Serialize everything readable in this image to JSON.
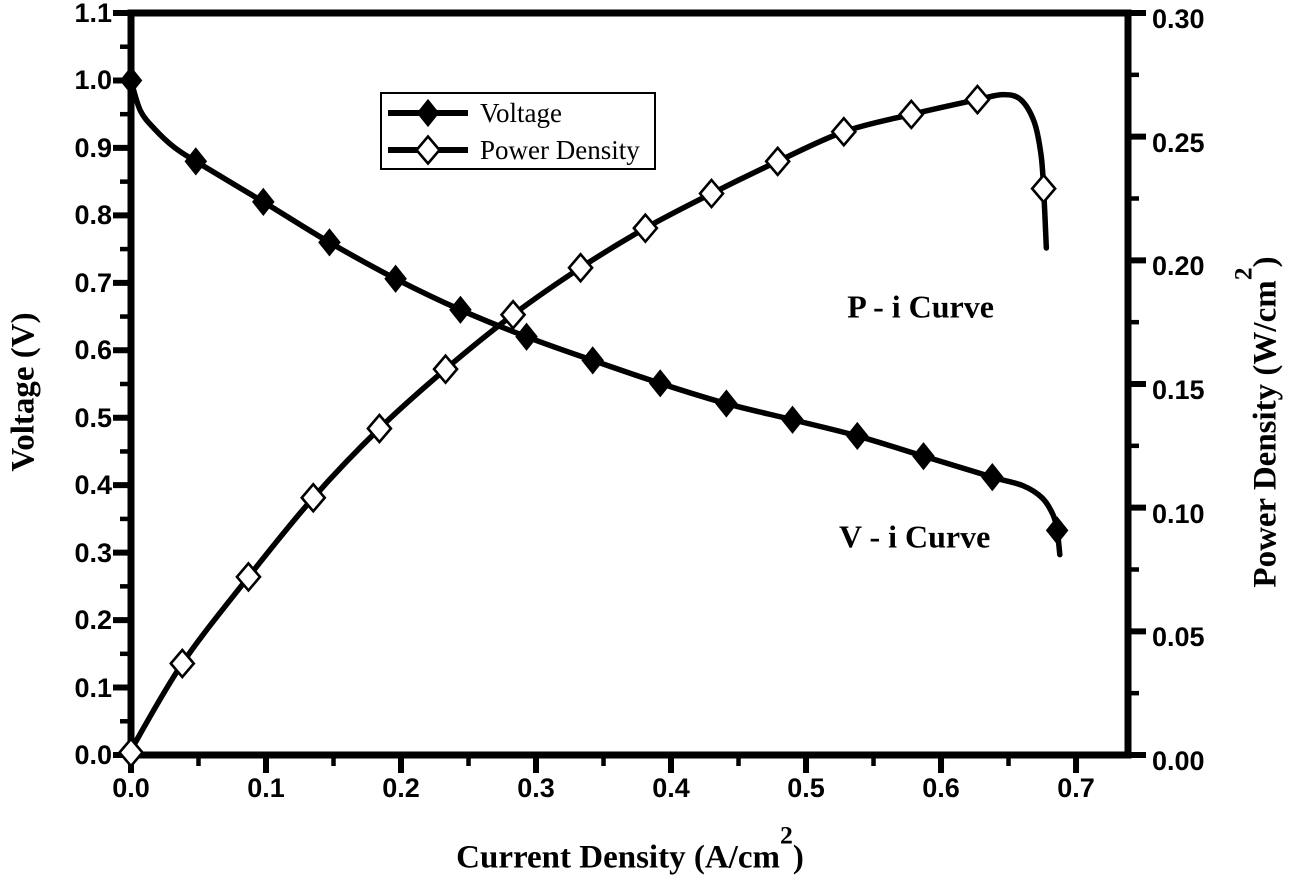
{
  "figure": {
    "background_color": "#ffffff",
    "ink_color": "#000000"
  },
  "chart_data": {
    "type": "line",
    "title": "",
    "grid": "off",
    "legend_position": "upper-left-inside",
    "x_axis": {
      "label_pre": "Current Density (A/cm",
      "label_sup": "2",
      "label_post": ")",
      "min": 0,
      "max": 0.7385,
      "major_tick_values": [
        0.0,
        0.1,
        0.2,
        0.3,
        0.4,
        0.5,
        0.6,
        0.7
      ],
      "major_tick_labels": [
        "0.0",
        "0.1",
        "0.2",
        "0.3",
        "0.4",
        "0.5",
        "0.6",
        "0.7"
      ],
      "minor_tick_values": [
        0.05,
        0.15,
        0.25,
        0.35,
        0.45,
        0.55,
        0.65
      ]
    },
    "y_left_axis": {
      "label_pre": "Voltage (V)",
      "label_sup": "",
      "label_post": "",
      "min": 0,
      "max": 1.1,
      "major_tick_values": [
        0.0,
        0.1,
        0.2,
        0.3,
        0.4,
        0.5,
        0.6,
        0.7,
        0.8,
        0.9,
        1.0,
        1.1
      ],
      "major_tick_labels": [
        "0.0",
        "0.1",
        "0.2",
        "0.3",
        "0.4",
        "0.5",
        "0.6",
        "0.7",
        "0.8",
        "0.9",
        "1.0",
        "1.1"
      ],
      "minor_tick_values": [
        0.05,
        0.15,
        0.25,
        0.35,
        0.45,
        0.55,
        0.65,
        0.75,
        0.85,
        0.95,
        1.05
      ]
    },
    "y_right_axis": {
      "label_pre": "Power Density (W/cm",
      "label_sup": "2",
      "label_post": ")",
      "min": 0,
      "max": 0.3,
      "major_tick_values": [
        0.0,
        0.05,
        0.1,
        0.15,
        0.2,
        0.25,
        0.3
      ],
      "major_tick_labels": [
        "0.00",
        "0.05",
        "0.10",
        "0.15",
        "0.20",
        "0.25",
        "0.30"
      ],
      "minor_tick_values": [
        0.025,
        0.075,
        0.125,
        0.175,
        0.225,
        0.275
      ]
    },
    "series": [
      {
        "name": "Voltage",
        "axis": "left",
        "marker": "filled-diamond",
        "marker_points": [
          [
            0.0,
            1.0
          ],
          [
            0.048,
            0.88
          ],
          [
            0.098,
            0.82
          ],
          [
            0.147,
            0.76
          ],
          [
            0.196,
            0.706
          ],
          [
            0.244,
            0.66
          ],
          [
            0.293,
            0.62
          ],
          [
            0.342,
            0.585
          ],
          [
            0.392,
            0.551
          ],
          [
            0.441,
            0.521
          ],
          [
            0.49,
            0.497
          ],
          [
            0.538,
            0.473
          ],
          [
            0.587,
            0.443
          ],
          [
            0.638,
            0.412
          ],
          [
            0.686,
            0.333
          ]
        ],
        "path_points": [
          [
            0.0,
            1.0
          ],
          [
            0.007,
            0.955
          ],
          [
            0.018,
            0.927
          ],
          [
            0.032,
            0.901
          ],
          [
            0.048,
            0.88
          ],
          [
            0.098,
            0.82
          ],
          [
            0.147,
            0.76
          ],
          [
            0.196,
            0.706
          ],
          [
            0.244,
            0.66
          ],
          [
            0.293,
            0.62
          ],
          [
            0.342,
            0.585
          ],
          [
            0.392,
            0.551
          ],
          [
            0.441,
            0.521
          ],
          [
            0.49,
            0.497
          ],
          [
            0.538,
            0.473
          ],
          [
            0.587,
            0.443
          ],
          [
            0.638,
            0.412
          ],
          [
            0.661,
            0.399
          ],
          [
            0.675,
            0.381
          ],
          [
            0.683,
            0.356
          ],
          [
            0.686,
            0.333
          ],
          [
            0.688,
            0.297
          ]
        ]
      },
      {
        "name": "Power Density",
        "axis": "right",
        "marker": "open-diamond",
        "marker_points": [
          [
            0.0,
            0.001
          ],
          [
            0.038,
            0.037
          ],
          [
            0.087,
            0.072
          ],
          [
            0.135,
            0.104
          ],
          [
            0.184,
            0.132
          ],
          [
            0.233,
            0.156
          ],
          [
            0.283,
            0.178
          ],
          [
            0.333,
            0.197
          ],
          [
            0.381,
            0.213
          ],
          [
            0.43,
            0.227
          ],
          [
            0.479,
            0.24
          ],
          [
            0.528,
            0.252
          ],
          [
            0.578,
            0.259
          ],
          [
            0.627,
            0.265
          ],
          [
            0.676,
            0.229
          ]
        ],
        "path_points": [
          [
            0.0,
            0.002
          ],
          [
            0.038,
            0.037
          ],
          [
            0.087,
            0.072
          ],
          [
            0.135,
            0.104
          ],
          [
            0.184,
            0.132
          ],
          [
            0.233,
            0.156
          ],
          [
            0.283,
            0.178
          ],
          [
            0.333,
            0.197
          ],
          [
            0.381,
            0.213
          ],
          [
            0.43,
            0.227
          ],
          [
            0.479,
            0.24
          ],
          [
            0.528,
            0.252
          ],
          [
            0.578,
            0.259
          ],
          [
            0.627,
            0.265
          ],
          [
            0.646,
            0.267
          ],
          [
            0.659,
            0.265
          ],
          [
            0.669,
            0.256
          ],
          [
            0.674,
            0.243
          ],
          [
            0.676,
            0.229
          ],
          [
            0.678,
            0.205
          ]
        ]
      }
    ],
    "annotations": [
      {
        "text": "P - i Curve",
        "fx": 0.792,
        "fy": 0.396
      },
      {
        "text": "V - i Curve",
        "fx": 0.786,
        "fy": 0.706
      }
    ]
  },
  "legend": {
    "items": [
      {
        "label": "Voltage",
        "marker": "filled-diamond"
      },
      {
        "label": "Power Density",
        "marker": "open-diamond"
      }
    ]
  }
}
